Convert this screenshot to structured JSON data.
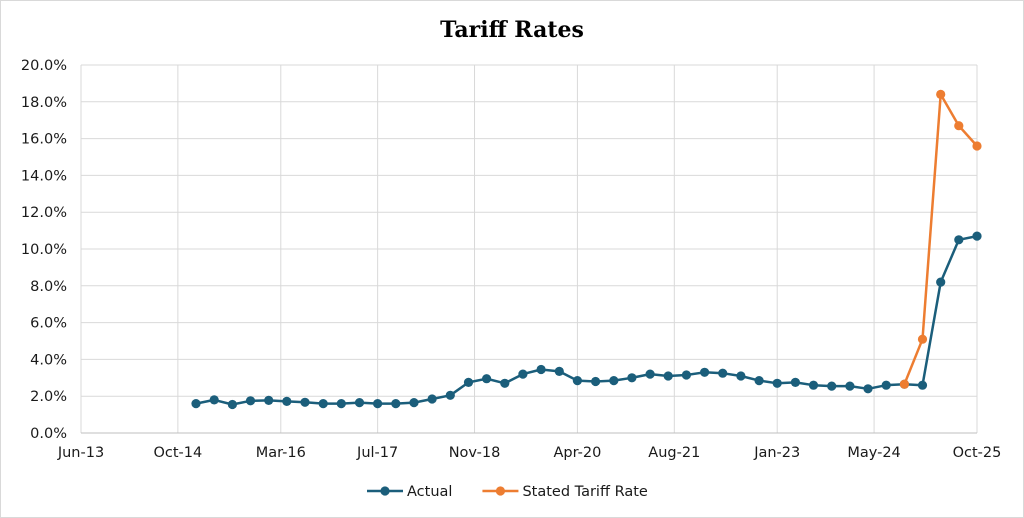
{
  "chart_data": {
    "type": "line",
    "title": "Tariff Rates",
    "xlabel": "",
    "ylabel": "",
    "x_axis": {
      "type": "date",
      "min": "2013-06",
      "max": "2025-10",
      "ticks": [
        "Jun-13",
        "Oct-14",
        "Mar-16",
        "Jul-17",
        "Nov-18",
        "Apr-20",
        "Aug-21",
        "Jan-23",
        "May-24",
        "Oct-25"
      ],
      "tick_dates": [
        "2013-06",
        "2014-10",
        "2016-03",
        "2017-07",
        "2018-11",
        "2020-04",
        "2021-08",
        "2023-01",
        "2024-05",
        "2025-10"
      ]
    },
    "y_axis": {
      "min": 0,
      "max": 20,
      "step": 2,
      "format": "percent",
      "ticks": [
        "0.0%",
        "2.0%",
        "4.0%",
        "6.0%",
        "8.0%",
        "10.0%",
        "12.0%",
        "14.0%",
        "16.0%",
        "18.0%",
        "20.0%"
      ]
    },
    "grid": true,
    "legend_position": "bottom",
    "series": [
      {
        "name": "Actual",
        "color": "#1b5e7b",
        "x": [
          "2015-01",
          "2015-04",
          "2015-07",
          "2015-10",
          "2016-01",
          "2016-04",
          "2016-07",
          "2016-10",
          "2017-01",
          "2017-04",
          "2017-07",
          "2017-10",
          "2018-01",
          "2018-04",
          "2018-07",
          "2018-10",
          "2019-01",
          "2019-04",
          "2019-07",
          "2019-10",
          "2020-01",
          "2020-04",
          "2020-07",
          "2020-10",
          "2021-01",
          "2021-04",
          "2021-07",
          "2021-10",
          "2022-01",
          "2022-04",
          "2022-07",
          "2022-10",
          "2023-01",
          "2023-04",
          "2023-07",
          "2023-10",
          "2024-01",
          "2024-04",
          "2024-07",
          "2024-10",
          "2025-01",
          "2025-04",
          "2025-07",
          "2025-10"
        ],
        "values": [
          1.6,
          1.8,
          1.55,
          1.75,
          1.77,
          1.72,
          1.67,
          1.6,
          1.6,
          1.65,
          1.6,
          1.6,
          1.65,
          1.85,
          2.05,
          2.75,
          2.95,
          2.7,
          3.2,
          3.45,
          3.35,
          2.85,
          2.8,
          2.85,
          3.0,
          3.2,
          3.1,
          3.15,
          3.3,
          3.25,
          3.1,
          2.85,
          2.7,
          2.75,
          2.6,
          2.55,
          2.55,
          2.4,
          2.6,
          2.65,
          2.6,
          8.2,
          10.5,
          10.7
        ]
      },
      {
        "name": "Stated Tariff Rate",
        "color": "#ed7d31",
        "x": [
          "2024-10",
          "2025-01",
          "2025-04",
          "2025-07",
          "2025-10"
        ],
        "values": [
          2.65,
          5.1,
          18.4,
          16.7,
          15.6
        ]
      }
    ]
  }
}
